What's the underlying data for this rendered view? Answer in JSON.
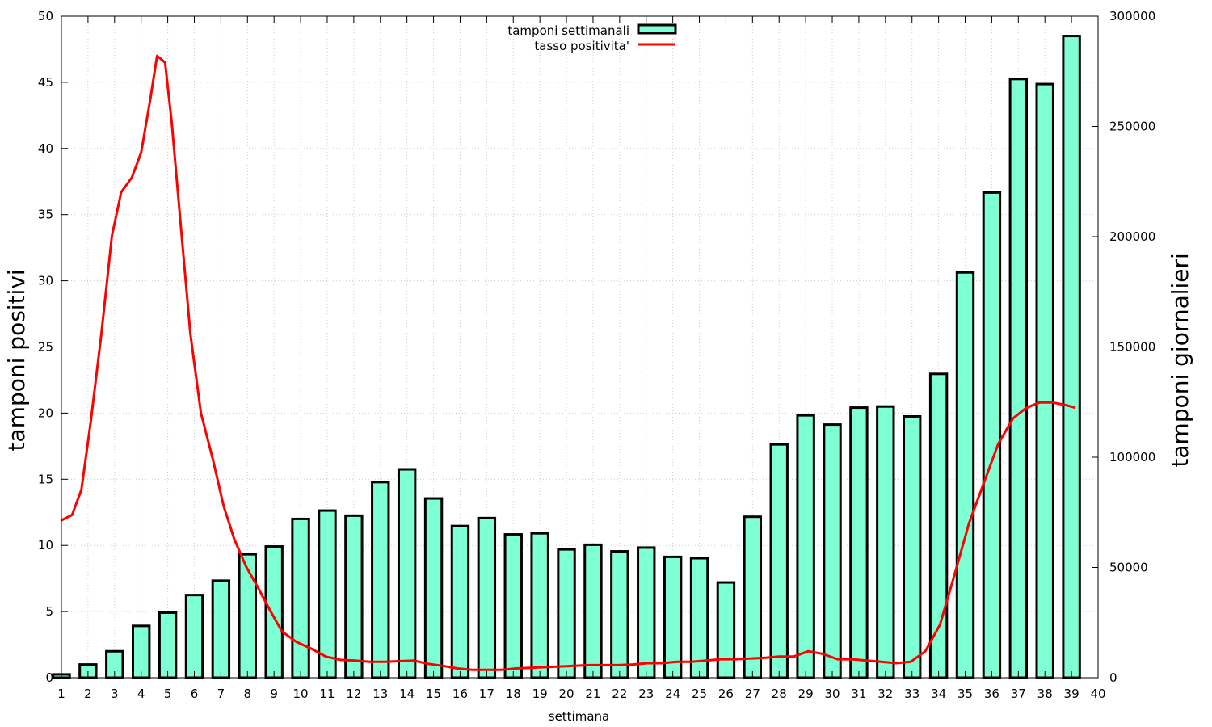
{
  "chart_data": {
    "type": "bar+line",
    "xlabel": "settimana",
    "ylabel_left": "tamponi positivi",
    "ylabel_right": "tamponi giornalieri",
    "xlim": [
      1,
      40
    ],
    "ylim_left": [
      0,
      50
    ],
    "ylim_right": [
      0,
      300000
    ],
    "x_ticks": [
      1,
      2,
      3,
      4,
      5,
      6,
      7,
      8,
      9,
      10,
      11,
      12,
      13,
      14,
      15,
      16,
      17,
      18,
      19,
      20,
      21,
      22,
      23,
      24,
      25,
      26,
      27,
      28,
      29,
      30,
      31,
      32,
      33,
      34,
      35,
      36,
      37,
      38,
      39,
      40
    ],
    "y_ticks_left": [
      0,
      5,
      10,
      15,
      20,
      25,
      30,
      35,
      40,
      45,
      50
    ],
    "y_ticks_right": [
      0,
      50000,
      100000,
      150000,
      200000,
      250000,
      300000
    ],
    "grid": true,
    "legend_position": "top-center",
    "colors": {
      "bar_fill": "#7fffd4",
      "bar_stroke": "#000000",
      "line": "#ff0000"
    },
    "bars": {
      "name": "tamponi settimanali",
      "axis": "right",
      "x": [
        1,
        2,
        3,
        4,
        5,
        6,
        7,
        8,
        9,
        10,
        11,
        12,
        13,
        14,
        15,
        16,
        17,
        18,
        19,
        20,
        21,
        22,
        23,
        24,
        25,
        26,
        27,
        28,
        29,
        30,
        31,
        32,
        33,
        34,
        35,
        36,
        37,
        38,
        39
      ],
      "values": [
        1500,
        6000,
        12000,
        23500,
        29500,
        37500,
        44000,
        56000,
        59500,
        72000,
        75800,
        73500,
        88700,
        94500,
        81300,
        68800,
        72400,
        65000,
        65500,
        58200,
        60300,
        57300,
        59000,
        54800,
        54200,
        43200,
        73000,
        105800,
        119000,
        114800,
        122500,
        123000,
        118500,
        137800,
        183800,
        220000,
        271500,
        269200,
        291000
      ]
    },
    "line": {
      "name": "tasso positivita'",
      "axis": "left",
      "x": [
        1,
        1.4,
        1.75,
        2.1,
        2.5,
        2.9,
        3.25,
        3.65,
        4,
        4.35,
        4.6,
        4.9,
        5.15,
        5.5,
        5.85,
        6.25,
        6.7,
        7.1,
        7.5,
        7.95,
        8.4,
        8.85,
        9.3,
        9.85,
        10.4,
        10.95,
        11.5,
        12.05,
        12.6,
        13.15,
        13.7,
        14.25,
        14.8,
        15.35,
        15.9,
        16.45,
        17,
        17.55,
        18.1,
        18.65,
        19.2,
        19.75,
        20.3,
        20.85,
        21.4,
        21.95,
        22.5,
        23.05,
        23.6,
        24.15,
        24.7,
        25.25,
        25.8,
        26.35,
        26.9,
        27.45,
        28,
        28.55,
        29.1,
        29.65,
        30.2,
        30.75,
        31.3,
        31.85,
        32.4,
        32.95,
        33.5,
        34.05,
        34.6,
        35.15,
        35.7,
        36.25,
        36.8,
        37.3,
        37.8,
        38.3,
        38.8,
        39.15
      ],
      "values": [
        11.9,
        12.3,
        14.2,
        19.3,
        25.9,
        33.4,
        36.7,
        37.8,
        39.7,
        43.8,
        47.0,
        46.5,
        42.0,
        34.0,
        26.0,
        20.0,
        16.5,
        13.0,
        10.5,
        8.4,
        6.8,
        5.1,
        3.5,
        2.7,
        2.2,
        1.6,
        1.35,
        1.3,
        1.2,
        1.2,
        1.25,
        1.3,
        1.05,
        0.9,
        0.7,
        0.6,
        0.6,
        0.6,
        0.7,
        0.75,
        0.8,
        0.85,
        0.9,
        0.95,
        0.95,
        0.95,
        1.0,
        1.1,
        1.1,
        1.2,
        1.2,
        1.3,
        1.4,
        1.4,
        1.45,
        1.5,
        1.6,
        1.6,
        2.0,
        1.8,
        1.4,
        1.4,
        1.3,
        1.2,
        1.1,
        1.2,
        2.0,
        4.0,
        7.8,
        11.7,
        14.7,
        17.7,
        19.6,
        20.4,
        20.8,
        20.8,
        20.6,
        20.4
      ]
    }
  }
}
